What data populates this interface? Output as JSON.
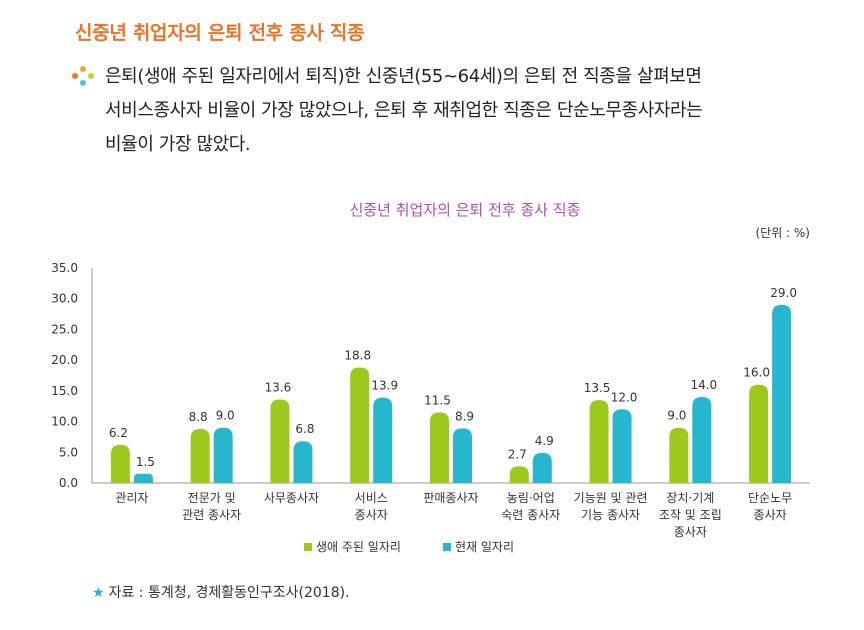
{
  "heading": "신중년 취업자의 은퇴 전후 종사 직종",
  "paragraph": {
    "lines": [
      "은퇴(생애 주된 일자리에서 퇴직)한 신중년(55~64세)의 은퇴 전 직종을 살펴보면",
      "서비스종사자 비율이 가장 많았으나, 은퇴 후 재취업한 직종은 단순노무종사자라는",
      "비율이 가장 많았다."
    ]
  },
  "colors": {
    "heading": "#e8742a",
    "chart_title": "#b04fa6",
    "series_main": "#9dc81e",
    "series_current": "#26b7cf",
    "bullet": [
      "#f2a13b",
      "#f07a2e",
      "#bcd33a",
      "#53c1d6"
    ]
  },
  "chart_data": {
    "type": "bar",
    "title": "신중년 취업자의 은퇴 전후 종사 직종",
    "unit": "(단위 : %)",
    "ylim": [
      0,
      35
    ],
    "yticks": [
      "35.0",
      "30.0",
      "25.0",
      "20.0",
      "15.0",
      "10.0",
      "5.0",
      "0.0"
    ],
    "categories": [
      [
        "관리자"
      ],
      [
        "전문가 및",
        "관련 종사자"
      ],
      [
        "사무종사자"
      ],
      [
        "서비스",
        "종사자"
      ],
      [
        "판매종사자"
      ],
      [
        "농림·어업",
        "숙련 종사자"
      ],
      [
        "기능원 및 관련",
        "기능 종사자"
      ],
      [
        "장치·기계",
        "조작 및 조립",
        "종사자"
      ],
      [
        "단순노무",
        "종사자"
      ]
    ],
    "series": [
      {
        "name": "생애 주된 일자리",
        "values": [
          6.2,
          8.8,
          13.6,
          18.8,
          11.5,
          2.7,
          13.5,
          9.0,
          16.0
        ],
        "labels": [
          "6.2",
          "8.8",
          "13.6",
          "18.8",
          "11.5",
          "2.7",
          "13.5",
          "9.0",
          "16.0"
        ]
      },
      {
        "name": "현재 일자리",
        "values": [
          1.5,
          9.0,
          6.8,
          13.9,
          8.9,
          4.9,
          12.0,
          14.0,
          29.0
        ],
        "labels": [
          "1.5",
          "9.0",
          "6.8",
          "13.9",
          "8.9",
          "4.9",
          "12.0",
          "14.0",
          "29.0"
        ]
      }
    ],
    "legend": [
      "생애 주된 일자리",
      "현재 일자리"
    ],
    "legend_position": "bottom-center"
  },
  "source": {
    "star": "★",
    "text": "자료 : 통계청, 경제활동인구조사(2018)."
  }
}
